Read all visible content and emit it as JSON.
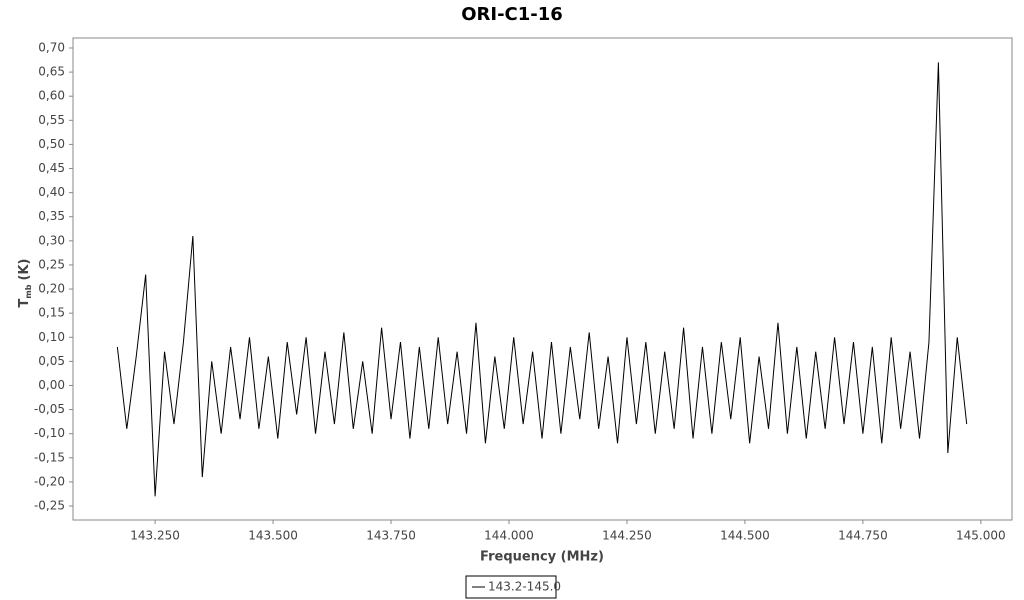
{
  "chart_data": {
    "type": "line",
    "title": "ORI-C1-16",
    "x_label": "Frequency (MHz)",
    "y_label": {
      "main": "T",
      "sub": "mb",
      "unit": "(K)"
    },
    "xlim": [
      143.076,
      145.066
    ],
    "ylim": [
      -0.279,
      0.7207
    ],
    "xticks": [
      {
        "value": 143.25,
        "label": "143.250"
      },
      {
        "value": 143.5,
        "label": "143.500"
      },
      {
        "value": 143.75,
        "label": "143.750"
      },
      {
        "value": 144.0,
        "label": "144.000"
      },
      {
        "value": 144.25,
        "label": "144.250"
      },
      {
        "value": 144.5,
        "label": "144.500"
      },
      {
        "value": 144.75,
        "label": "144.750"
      },
      {
        "value": 145.0,
        "label": "145.000"
      }
    ],
    "yticks": [
      {
        "value": -0.25,
        "label": "-0,25"
      },
      {
        "value": -0.2,
        "label": "-0,20"
      },
      {
        "value": -0.15,
        "label": "-0,15"
      },
      {
        "value": -0.1,
        "label": "-0,10"
      },
      {
        "value": -0.05,
        "label": "-0,05"
      },
      {
        "value": 0,
        "label": "0,00"
      },
      {
        "value": 0.05,
        "label": "0,05"
      },
      {
        "value": 0.1,
        "label": "0,10"
      },
      {
        "value": 0.15,
        "label": "0,15"
      },
      {
        "value": 0.2,
        "label": "0,20"
      },
      {
        "value": 0.25,
        "label": "0,25"
      },
      {
        "value": 0.3,
        "label": "0,30"
      },
      {
        "value": 0.35,
        "label": "0,35"
      },
      {
        "value": 0.4,
        "label": "0,40"
      },
      {
        "value": 0.45,
        "label": "0,45"
      },
      {
        "value": 0.5,
        "label": "0,50"
      },
      {
        "value": 0.55,
        "label": "0,55"
      },
      {
        "value": 0.6,
        "label": "0,60"
      },
      {
        "value": 0.65,
        "label": "0,65"
      },
      {
        "value": 0.7,
        "label": "0,70"
      }
    ],
    "x": [
      143.17,
      143.19,
      143.21,
      143.23,
      143.25,
      143.27,
      143.29,
      143.31,
      143.33,
      143.35,
      143.37,
      143.39,
      143.41,
      143.43,
      143.45,
      143.47,
      143.49,
      143.51,
      143.53,
      143.55,
      143.57,
      143.59,
      143.61,
      143.63,
      143.65,
      143.67,
      143.69,
      143.71,
      143.73,
      143.75,
      143.77,
      143.79,
      143.81,
      143.83,
      143.85,
      143.87,
      143.89,
      143.91,
      143.93,
      143.95,
      143.97,
      143.99,
      144.01,
      144.03,
      144.05,
      144.07,
      144.09,
      144.11,
      144.13,
      144.15,
      144.17,
      144.19,
      144.21,
      144.23,
      144.25,
      144.27,
      144.29,
      144.31,
      144.33,
      144.35,
      144.37,
      144.39,
      144.41,
      144.43,
      144.45,
      144.47,
      144.49,
      144.51,
      144.53,
      144.55,
      144.57,
      144.59,
      144.61,
      144.63,
      144.65,
      144.67,
      144.69,
      144.71,
      144.73,
      144.75,
      144.77,
      144.79,
      144.81,
      144.83,
      144.85,
      144.87,
      144.89,
      144.91,
      144.93,
      144.95,
      144.97
    ],
    "series": [
      {
        "name": "143.2-145.0",
        "color": "#000000",
        "values": [
          0.08,
          -0.09,
          0.06,
          0.23,
          -0.23,
          0.07,
          -0.08,
          0.09,
          0.31,
          -0.19,
          0.05,
          -0.1,
          0.08,
          -0.07,
          0.1,
          -0.09,
          0.06,
          -0.11,
          0.09,
          -0.06,
          0.1,
          -0.1,
          0.07,
          -0.08,
          0.11,
          -0.09,
          0.05,
          -0.1,
          0.12,
          -0.07,
          0.09,
          -0.11,
          0.08,
          -0.09,
          0.1,
          -0.08,
          0.07,
          -0.1,
          0.13,
          -0.12,
          0.06,
          -0.09,
          0.1,
          -0.08,
          0.07,
          -0.11,
          0.09,
          -0.1,
          0.08,
          -0.07,
          0.11,
          -0.09,
          0.06,
          -0.12,
          0.1,
          -0.08,
          0.09,
          -0.1,
          0.07,
          -0.09,
          0.12,
          -0.11,
          0.08,
          -0.1,
          0.09,
          -0.07,
          0.1,
          -0.12,
          0.06,
          -0.09,
          0.13,
          -0.1,
          0.08,
          -0.11,
          0.07,
          -0.09,
          0.1,
          -0.08,
          0.09,
          -0.1,
          0.08,
          -0.12,
          0.1,
          -0.09,
          0.07,
          -0.11,
          0.09,
          0.67,
          -0.14,
          0.1,
          -0.08
        ]
      }
    ]
  }
}
